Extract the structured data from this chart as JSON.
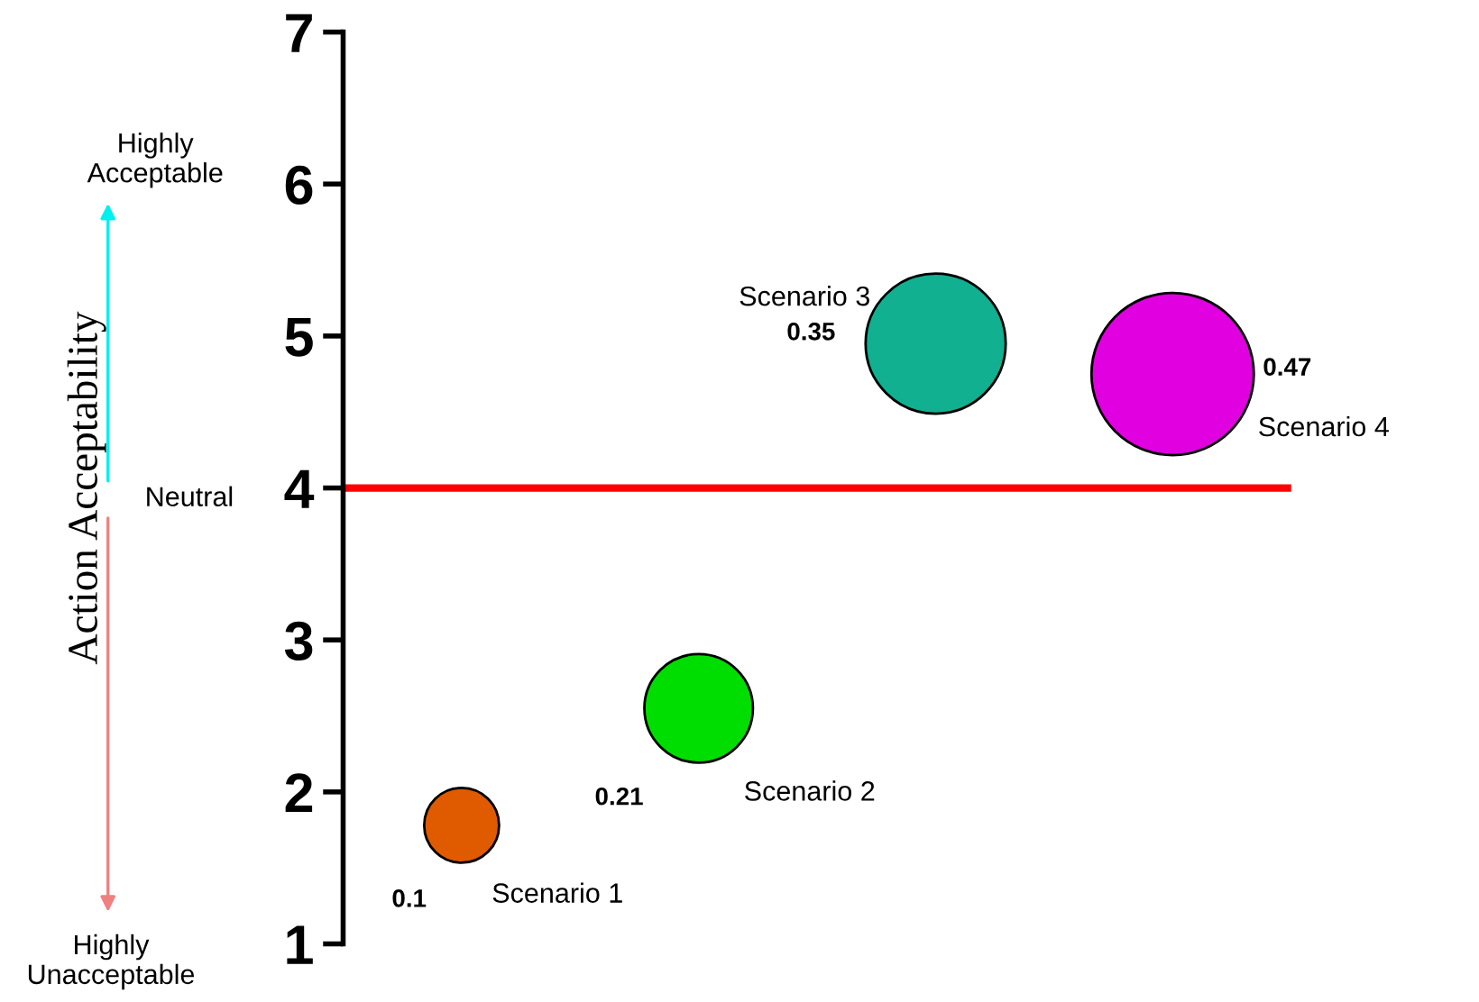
{
  "chart_data": {
    "type": "bubble",
    "ylabel": "Action Acceptability",
    "annotations": [
      "Highly Acceptable",
      "Neutral",
      "Highly Unacceptable"
    ],
    "categories": [
      null,
      null,
      null,
      null
    ],
    "series": [
      {
        "name": "Scenario 1",
        "color": "#e05a00",
        "values": [
          1.78,
          null,
          null,
          null
        ],
        "sizes": [
          0.1,
          null,
          null,
          null
        ],
        "value_labels": [
          "0.1",
          null,
          null,
          null
        ]
      },
      {
        "name": "Scenario 2",
        "color": "#00dd00",
        "values": [
          null,
          2.55,
          null,
          null
        ],
        "sizes": [
          null,
          0.21,
          null,
          null
        ],
        "value_labels": [
          null,
          "0.21",
          null,
          null
        ]
      },
      {
        "name": "Scenario 3",
        "color": "#10b090",
        "values": [
          null,
          null,
          4.95,
          null
        ],
        "sizes": [
          null,
          null,
          0.35,
          null
        ],
        "value_labels": [
          null,
          null,
          "0.35",
          null
        ]
      },
      {
        "name": "Scenario 4",
        "color": "#e000e0",
        "values": [
          null,
          null,
          null,
          4.75
        ],
        "sizes": [
          null,
          null,
          null,
          0.47
        ],
        "value_labels": [
          null,
          null,
          null,
          "0.47"
        ]
      }
    ],
    "ylim": [
      1,
      7
    ],
    "yticks": [
      1,
      2,
      3,
      4,
      5,
      6,
      7
    ],
    "ref_lines": [
      {
        "axis": "y",
        "value": 4,
        "color": "#ff0000"
      }
    ],
    "tick_labels": "y",
    "grid": false,
    "legend": false
  }
}
